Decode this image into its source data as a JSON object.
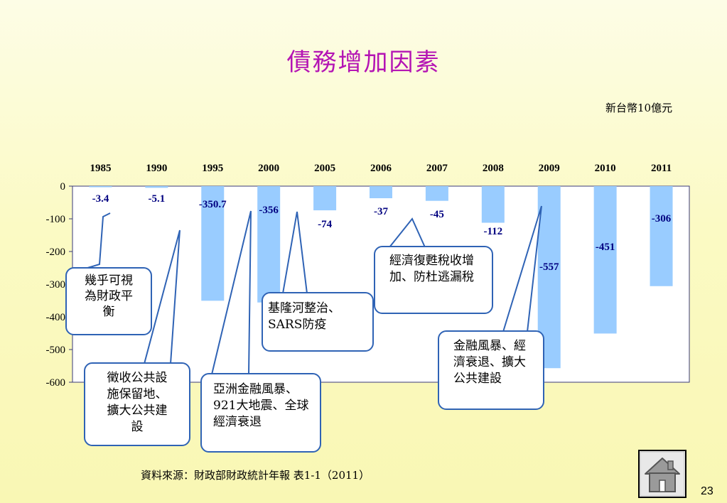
{
  "slide": {
    "title": "債務增加因素",
    "unit": "新台幣10億元",
    "source": "資料來源：財政部財政統計年報 表1-1（2011）",
    "page_number": "23"
  },
  "colors": {
    "title": "#b414b4",
    "bar": "#99ccff",
    "callout_border": "#2f63b5",
    "label": "#000080"
  },
  "chart_data": {
    "type": "bar",
    "categories": [
      "1985",
      "1990",
      "1995",
      "2000",
      "2005",
      "2006",
      "2007",
      "2008",
      "2009",
      "2010",
      "2011"
    ],
    "values": [
      -3.4,
      -5.1,
      -350.7,
      -356,
      -74,
      -37,
      -45,
      -112,
      -557,
      -451,
      -306
    ],
    "labels": [
      "-3.4",
      "-5.1",
      "-350.7",
      "-356",
      "-74",
      "-37",
      "-45",
      "-112",
      "-557",
      "-451",
      "-306"
    ],
    "ylim": [
      -600,
      0
    ],
    "yticks": [
      0,
      -100,
      -200,
      -300,
      -400,
      -500,
      -600
    ],
    "ytick_labels": [
      "0",
      "-100",
      "-200",
      "-300",
      "-400",
      "-500",
      "-600"
    ],
    "xaxis_position": "top",
    "grid": false,
    "legend": "none"
  },
  "callouts": [
    {
      "text": "幾乎可視為財政平衡",
      "icon": "callout-box"
    },
    {
      "text": "徵收公共設施保留地、擴大公共建設",
      "icon": "callout-box"
    },
    {
      "text": "亞洲金融風暴、921大地震、全球經濟衰退",
      "icon": "callout-box"
    },
    {
      "text": "基隆河整治、SARS防疫",
      "icon": "callout-box"
    },
    {
      "text": "經濟復甦稅收增加、防杜逃漏稅",
      "icon": "callout-box"
    },
    {
      "text": "金融風暴、經濟衰退、擴大公共建設",
      "icon": "callout-box"
    }
  ],
  "home": {
    "icon": "home-icon"
  }
}
